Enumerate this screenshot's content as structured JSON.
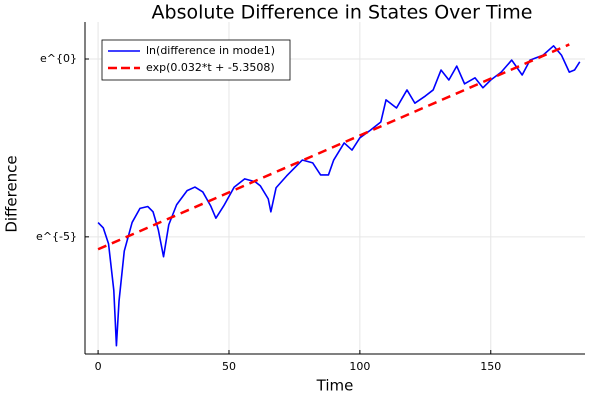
{
  "chart_data": {
    "type": "line",
    "title": "Absolute Difference in States Over Time",
    "x_label": "Time",
    "y_label": "Difference",
    "yscale": "log",
    "xlim": [
      -5,
      186
    ],
    "xticks": [
      0,
      50,
      100,
      150
    ],
    "ylim": [
      0.00025,
      2.83
    ],
    "yticks": [
      {
        "value": 1,
        "label": "e^{0}"
      },
      {
        "value": 0.006738,
        "label": "e^{-5}"
      }
    ],
    "grid": true,
    "legend": "top-left",
    "series": [
      {
        "name": "ln(difference in mode1)",
        "color": "#0000ff",
        "dash": false,
        "x": [
          0,
          2,
          4,
          6,
          7,
          8,
          10,
          13,
          16,
          19,
          21,
          23,
          25,
          27,
          30,
          34,
          37,
          40,
          43,
          45,
          48,
          52,
          56,
          60,
          62,
          65,
          66,
          68,
          72,
          78,
          82,
          85,
          88,
          90,
          94,
          97,
          100,
          104,
          108,
          110,
          114,
          118,
          121,
          125,
          128,
          131,
          134,
          137,
          140,
          144,
          147,
          150,
          154,
          158,
          162,
          165,
          170,
          174,
          177,
          180,
          182,
          184
        ],
        "values": [
          0.01005,
          0.00865,
          0.00552,
          0.0015,
          0.000316,
          0.00111,
          0.00452,
          0.0101,
          0.015,
          0.0158,
          0.0136,
          0.00823,
          0.00385,
          0.00947,
          0.0166,
          0.0247,
          0.0273,
          0.0238,
          0.0161,
          0.0114,
          0.0161,
          0.0273,
          0.0344,
          0.0317,
          0.0282,
          0.0196,
          0.0136,
          0.0268,
          0.0373,
          0.0584,
          0.0539,
          0.0384,
          0.0384,
          0.0584,
          0.0944,
          0.0773,
          0.109,
          0.135,
          0.17,
          0.317,
          0.252,
          0.419,
          0.289,
          0.353,
          0.419,
          0.733,
          0.554,
          0.819,
          0.497,
          0.589,
          0.445,
          0.554,
          0.691,
          0.97,
          0.638,
          0.97,
          1.116,
          1.448,
          1.116,
          0.691,
          0.733,
          0.923
        ]
      },
      {
        "name": "exp(0.032*t + -5.3508)",
        "color": "#ff0000",
        "dash": true,
        "x": [
          0,
          180
        ],
        "values": [
          0.004749,
          1.5056
        ]
      }
    ]
  }
}
